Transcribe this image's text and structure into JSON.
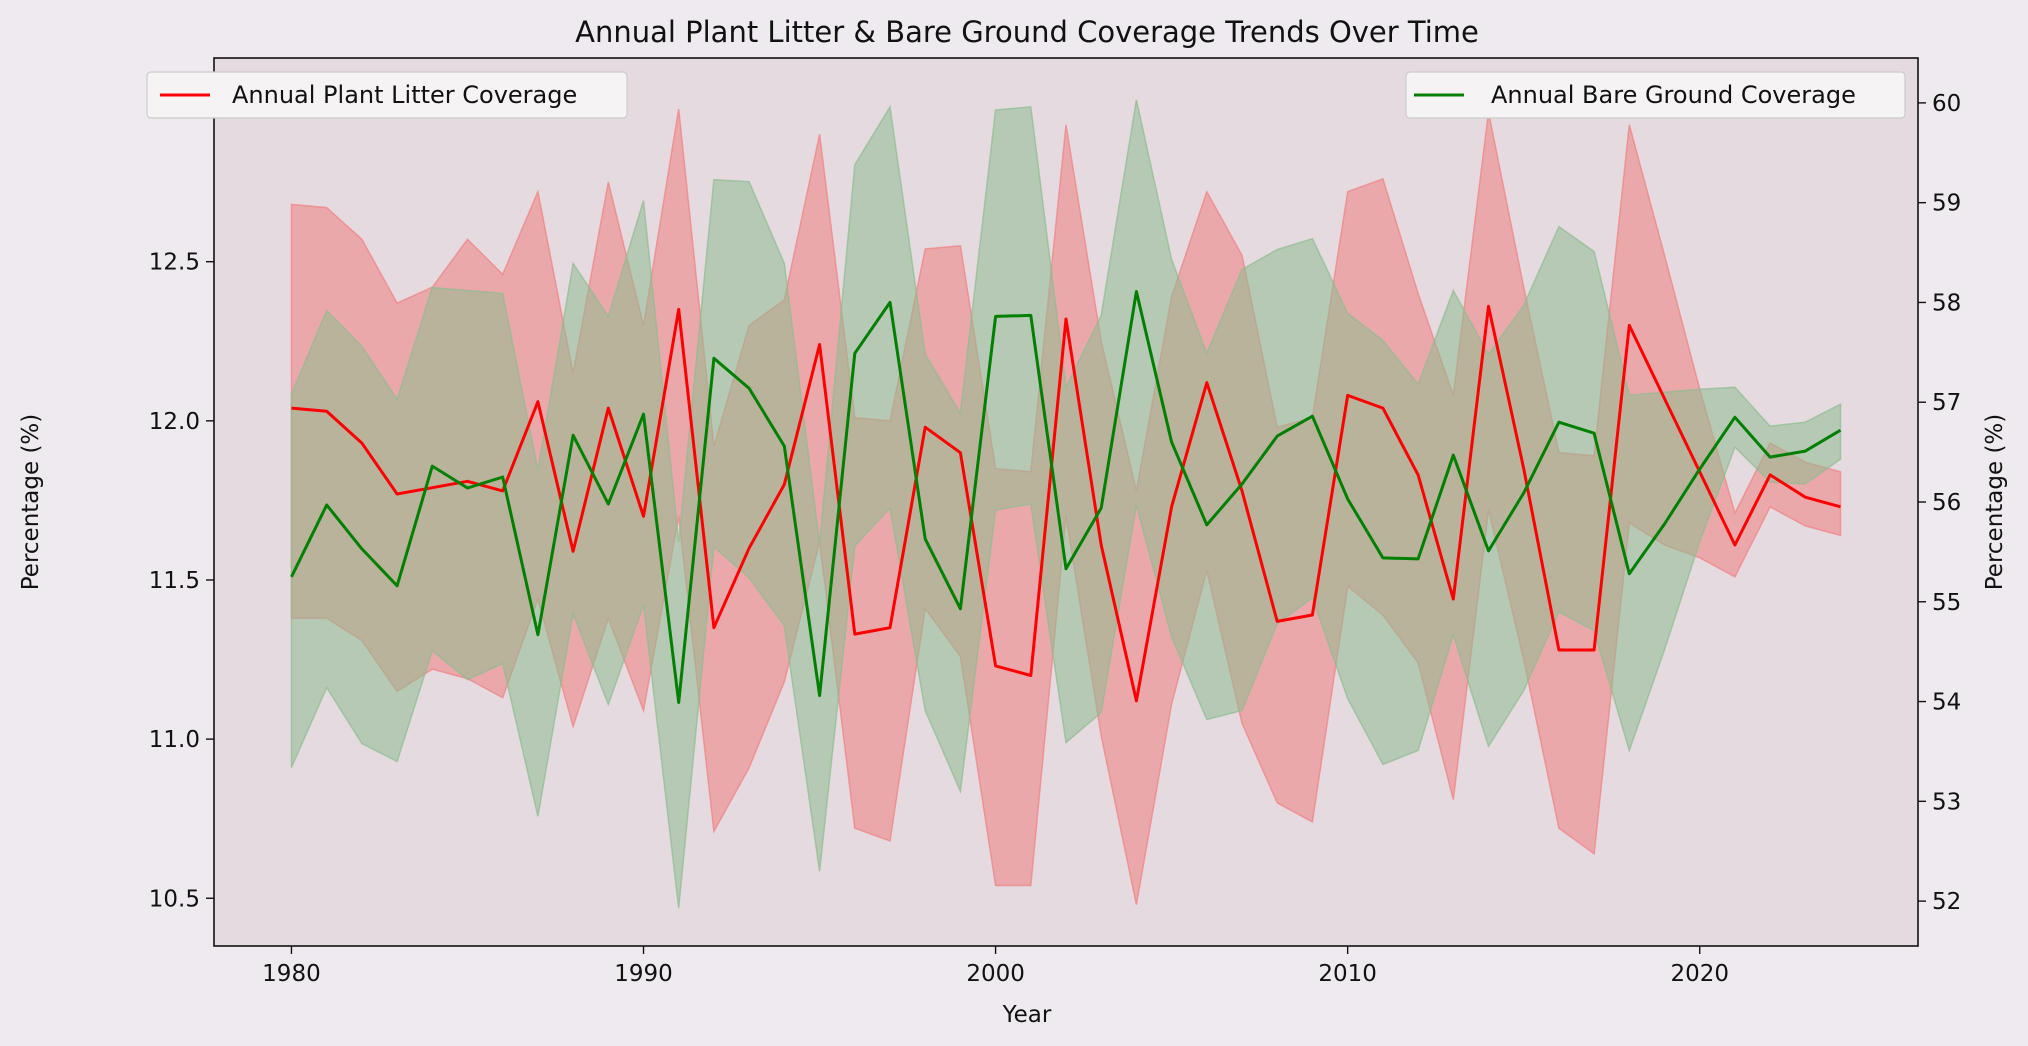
{
  "chart_data": {
    "type": "line",
    "title": "Annual Plant Litter & Bare Ground Coverage Trends Over Time",
    "xlabel": "Year",
    "ylabel_left": "Percentage (%)",
    "ylabel_right": "Percentage (%)",
    "xlim": [
      1977.8,
      2026.2
    ],
    "ylim_left": [
      10.35,
      13.14
    ],
    "ylim_right": [
      51.55,
      60.45
    ],
    "xticks": [
      1980,
      1990,
      2000,
      2010,
      2020
    ],
    "yticks_left": [
      10.5,
      11.0,
      11.5,
      12.0,
      12.5,
      13.0
    ],
    "yticks_right": [
      52,
      53,
      54,
      55,
      56,
      57,
      58,
      59,
      60
    ],
    "x": [
      1980,
      1981,
      1982,
      1983,
      1984,
      1985,
      1986,
      1987,
      1988,
      1989,
      1990,
      1991,
      1992,
      1993,
      1994,
      1995,
      1996,
      1997,
      1998,
      1999,
      2000,
      2001,
      2002,
      2003,
      2004,
      2005,
      2006,
      2007,
      2008,
      2009,
      2010,
      2011,
      2012,
      2013,
      2014,
      2015,
      2016,
      2017,
      2018,
      2019,
      2020,
      2021,
      2022,
      2023,
      2024
    ],
    "series": [
      {
        "name": "Annual Plant Litter Coverage",
        "axis": "left",
        "color": "#ff0000",
        "fill_color": "#f08080",
        "legend_position": "upper left",
        "values": [
          12.04,
          12.03,
          11.93,
          11.77,
          11.79,
          11.81,
          11.78,
          12.06,
          11.59,
          12.04,
          11.7,
          12.35,
          11.35,
          11.6,
          11.8,
          12.24,
          11.33,
          11.35,
          11.98,
          11.9,
          11.23,
          11.2,
          12.32,
          11.61,
          11.12,
          11.73,
          12.12,
          11.78,
          11.37,
          11.39,
          12.08,
          12.04,
          11.83,
          11.44,
          12.36,
          11.85,
          11.28,
          11.28,
          12.3,
          12.07,
          11.84,
          11.61,
          11.83,
          11.76,
          11.73
        ],
        "band_upper": [
          12.68,
          12.67,
          12.57,
          12.37,
          12.42,
          12.57,
          12.46,
          12.72,
          12.15,
          12.75,
          12.3,
          12.98,
          11.92,
          12.3,
          12.38,
          12.9,
          12.01,
          12.0,
          12.54,
          12.55,
          11.85,
          11.84,
          12.93,
          12.25,
          11.78,
          12.39,
          12.72,
          12.52,
          11.98,
          12.01,
          12.72,
          12.76,
          12.4,
          12.08,
          12.97,
          12.42,
          11.9,
          11.89,
          12.93,
          12.52,
          12.1,
          11.71,
          11.93,
          11.87,
          11.84
        ],
        "band_lower": [
          11.38,
          11.38,
          11.31,
          11.15,
          11.22,
          11.19,
          11.13,
          11.44,
          11.04,
          11.38,
          11.09,
          11.7,
          10.71,
          10.91,
          11.18,
          11.62,
          10.72,
          10.68,
          11.41,
          11.26,
          10.54,
          10.54,
          11.7,
          11.01,
          10.48,
          11.11,
          11.53,
          11.05,
          10.8,
          10.74,
          11.48,
          11.39,
          11.24,
          10.81,
          11.72,
          11.25,
          10.72,
          10.64,
          11.68,
          11.61,
          11.57,
          11.51,
          11.73,
          11.67,
          11.64
        ]
      },
      {
        "name": "Annual Bare Ground Coverage",
        "axis": "right",
        "color": "#008000",
        "fill_color": "#8fbc8f",
        "legend_position": "upper right",
        "values": [
          55.25,
          55.97,
          55.53,
          55.16,
          56.36,
          56.14,
          56.25,
          54.67,
          56.67,
          55.98,
          56.88,
          53.99,
          57.44,
          57.14,
          56.56,
          54.06,
          57.49,
          58.0,
          55.63,
          54.93,
          57.86,
          57.87,
          55.33,
          55.94,
          58.11,
          56.6,
          55.77,
          56.18,
          56.66,
          56.86,
          56.03,
          55.44,
          55.43,
          56.47,
          55.51,
          56.09,
          56.8,
          56.69,
          55.28,
          55.78,
          56.33,
          56.85,
          56.45,
          56.51,
          56.72
        ],
        "band_upper": [
          57.08,
          57.92,
          57.56,
          57.03,
          58.15,
          58.12,
          58.09,
          56.32,
          58.39,
          57.86,
          59.02,
          55.6,
          59.23,
          59.21,
          58.39,
          55.58,
          59.38,
          59.96,
          57.48,
          56.89,
          59.93,
          59.96,
          57.15,
          57.87,
          60.03,
          58.43,
          57.49,
          58.33,
          58.53,
          58.64,
          57.89,
          57.62,
          57.18,
          58.12,
          57.48,
          57.97,
          58.76,
          58.51,
          57.07,
          57.1,
          57.13,
          57.15,
          56.76,
          56.8,
          56.98
        ],
        "band_lower": [
          53.34,
          54.14,
          53.58,
          53.4,
          54.51,
          54.22,
          54.38,
          52.85,
          54.88,
          53.97,
          54.97,
          51.93,
          55.55,
          55.24,
          54.76,
          52.3,
          55.56,
          55.94,
          53.91,
          53.1,
          55.92,
          55.98,
          53.59,
          53.89,
          55.97,
          54.65,
          53.82,
          53.91,
          54.78,
          55.04,
          54.03,
          53.37,
          53.51,
          54.67,
          53.55,
          54.11,
          54.9,
          54.71,
          53.51,
          54.52,
          55.6,
          56.55,
          56.2,
          56.18,
          56.43
        ]
      }
    ],
    "grid": false
  }
}
